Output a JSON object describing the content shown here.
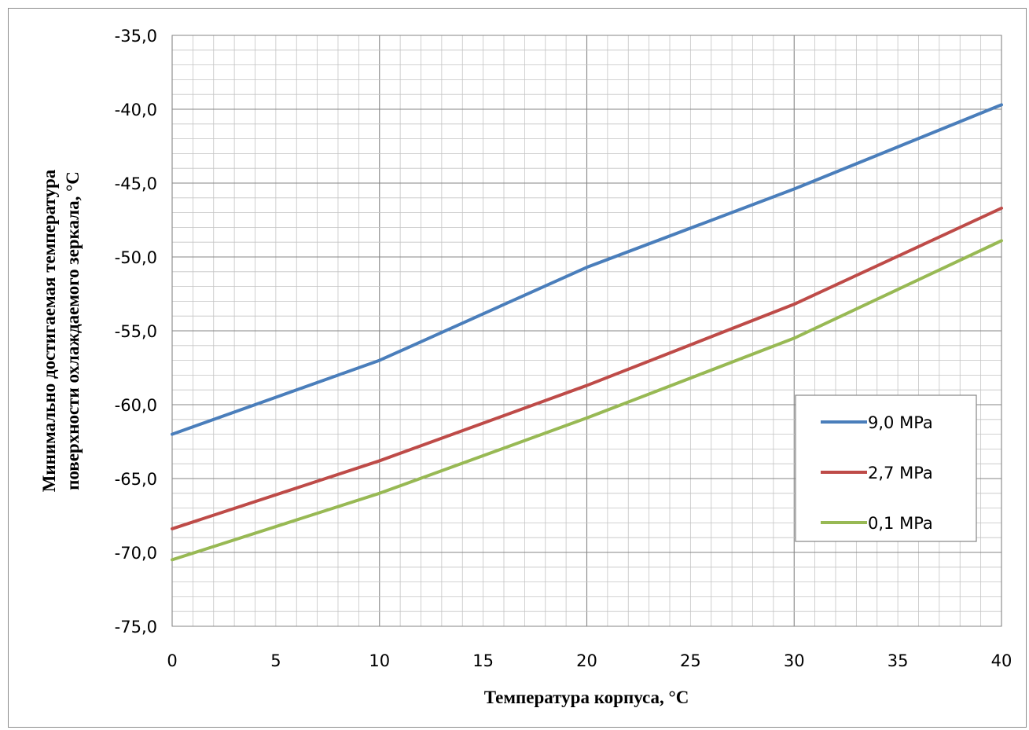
{
  "chart_data": {
    "type": "line",
    "title": "",
    "xlabel": "Температура корпуса, °C",
    "ylabel_line1": "Минимально достигаемая температура",
    "ylabel_line2": "поверхности охлаждаемого зеркала, °C",
    "x": [
      0,
      10,
      20,
      30,
      40
    ],
    "xlim": [
      0,
      40
    ],
    "ylim": [
      -75,
      -35
    ],
    "x_ticks": [
      "0",
      "5",
      "10",
      "15",
      "20",
      "25",
      "30",
      "35",
      "40"
    ],
    "y_ticks": [
      "-35,0",
      "-40,0",
      "-45,0",
      "-50,0",
      "-55,0",
      "-60,0",
      "-65,0",
      "-70,0",
      "-75,0"
    ],
    "grid": true,
    "legend_position": "right",
    "series": [
      {
        "name": "9,0 MPa",
        "color": "#4a7ebb",
        "values": [
          -62.0,
          -57.0,
          -50.7,
          -45.4,
          -39.7
        ]
      },
      {
        "name": "2,7 MPa",
        "color": "#be4b48",
        "values": [
          -68.4,
          -63.8,
          -58.7,
          -53.2,
          -46.7
        ]
      },
      {
        "name": "0,1 MPa",
        "color": "#98b954",
        "values": [
          -70.5,
          -66.0,
          -60.9,
          -55.5,
          -48.9
        ]
      }
    ]
  }
}
